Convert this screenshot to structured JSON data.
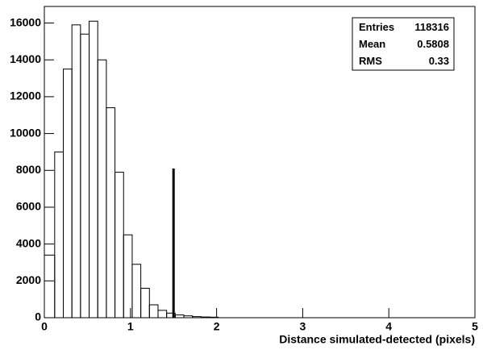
{
  "chart_data": {
    "type": "histogram",
    "x_label": "Distance simulated-detected (pixels)",
    "bins": [
      0,
      0.12,
      0.22,
      0.32,
      0.42,
      0.52,
      0.62,
      0.72,
      0.82,
      0.92,
      1.02,
      1.12,
      1.22,
      1.32,
      1.42,
      1.52,
      1.62,
      1.72,
      1.82,
      1.92,
      2.02
    ],
    "values": [
      3400,
      9000,
      13500,
      15900,
      15400,
      16100,
      14000,
      11400,
      7900,
      4500,
      2900,
      1600,
      700,
      400,
      250,
      150,
      100,
      60,
      40,
      30
    ],
    "color": "#000000",
    "xlim": [
      0,
      5
    ],
    "xticks": [
      0,
      1,
      2,
      3,
      4,
      5
    ],
    "ylim": [
      0,
      16900
    ],
    "yticks": [
      0,
      2000,
      4000,
      6000,
      8000,
      10000,
      12000,
      14000,
      16000
    ],
    "marker": {
      "x": 1.5,
      "y": 8100
    },
    "stats": [
      {
        "label": "Entries",
        "value": 118316
      },
      {
        "label": "Mean",
        "value": 0.5808
      },
      {
        "label": "RMS",
        "value": 0.33
      }
    ]
  }
}
